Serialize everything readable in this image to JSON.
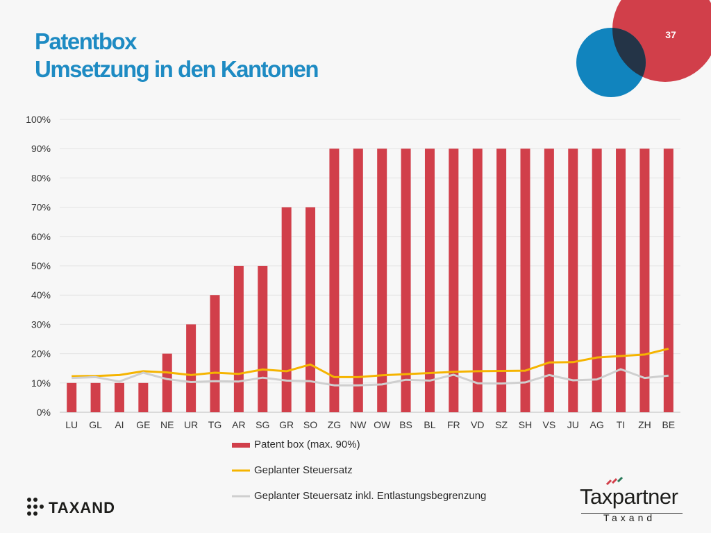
{
  "slide": {
    "title_line1": "Patentbox",
    "title_line2": "Umsetzung in den Kantonen",
    "page_number": "37"
  },
  "colors": {
    "title": "#1e8bc3",
    "bars": "#d13f4a",
    "line_tax": "#f5b400",
    "line_relief": "#cfcfcf",
    "circle_red": "#d13f4a",
    "circle_blue": "#1184be",
    "circle_overlap": "#243447"
  },
  "legend": {
    "bars_label": "Patent box  (max. 90%)",
    "tax_label": "Geplanter  Steuersatz",
    "relief_label": "Geplanter Steuersatz  inkl. Entlastungsbegrenzung"
  },
  "logos": {
    "taxand": "TAXAND",
    "taxpartner": "Taxpartner",
    "taxpartner_sub": "Taxand"
  },
  "chart_data": {
    "type": "bar",
    "categories": [
      "LU",
      "GL",
      "AI",
      "GE",
      "NE",
      "UR",
      "TG",
      "AR",
      "SG",
      "GR",
      "SO",
      "ZG",
      "NW",
      "OW",
      "BS",
      "BL",
      "FR",
      "VD",
      "SZ",
      "SH",
      "VS",
      "JU",
      "AG",
      "TI",
      "ZH",
      "BE"
    ],
    "ylim": [
      0,
      100
    ],
    "yticks": [
      "0%",
      "10%",
      "20%",
      "30%",
      "40%",
      "50%",
      "60%",
      "70%",
      "80%",
      "90%",
      "100%"
    ],
    "grid": true,
    "legend_position": "bottom",
    "series": [
      {
        "name": "Patent box  (max. 90%)",
        "kind": "bar",
        "values": [
          10,
          10,
          10,
          10,
          20,
          30,
          40,
          50,
          50,
          70,
          70,
          90,
          90,
          90,
          90,
          90,
          90,
          90,
          90,
          90,
          90,
          90,
          90,
          90,
          90,
          90
        ]
      },
      {
        "name": "Geplanter  Steuersatz",
        "kind": "line",
        "values": [
          12.3,
          12.4,
          12.7,
          14.0,
          13.6,
          12.7,
          13.5,
          13.1,
          14.6,
          14.0,
          16.3,
          12.0,
          12.0,
          12.6,
          13.0,
          13.4,
          13.8,
          14.0,
          14.1,
          14.2,
          17.0,
          17.1,
          18.7,
          19.2,
          19.7,
          21.7
        ]
      },
      {
        "name": "Geplanter Steuersatz  inkl. Entlastungsbegrenzung",
        "kind": "line",
        "values": [
          11.7,
          12.0,
          10.5,
          13.5,
          11.3,
          10.3,
          10.6,
          10.5,
          11.8,
          10.8,
          10.6,
          9.2,
          9.2,
          9.5,
          11.1,
          10.8,
          12.8,
          9.9,
          9.8,
          10.2,
          12.7,
          10.9,
          11.2,
          14.7,
          11.7,
          12.5
        ]
      }
    ]
  }
}
